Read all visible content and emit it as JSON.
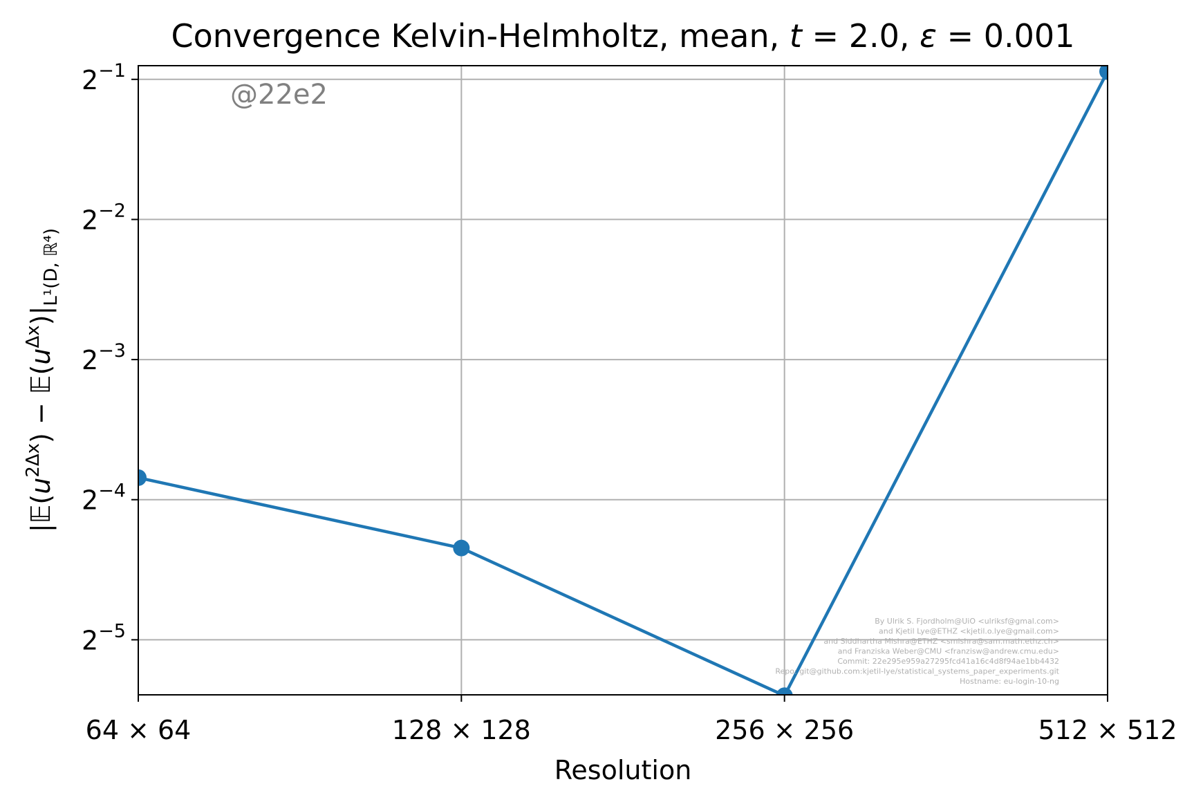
{
  "chart_data": {
    "type": "line",
    "title": "Convergence Kelvin-Helmholtz, mean, t = 2.0, ε = 0.001",
    "xlabel": "Resolution",
    "ylabel": "|𝔼(u^2Δx) − 𝔼(u^Δx)|L¹(D, ℝ⁴)",
    "x_scale": "log2",
    "y_scale": "log2",
    "categories": [
      "64 × 64",
      "128 × 128",
      "256 × 256",
      "512 × 512"
    ],
    "x": [
      64,
      128,
      256,
      512
    ],
    "series": [
      {
        "values": [
          0.0697,
          0.0492,
          0.0237,
          0.52
        ],
        "color": "#1f77b4",
        "marker": "circle"
      }
    ],
    "ylim": [
      0.0238,
      0.535
    ],
    "yticks": [
      {
        "value": 0.5,
        "base": "2",
        "exp": "−1"
      },
      {
        "value": 0.25,
        "base": "2",
        "exp": "−2"
      },
      {
        "value": 0.125,
        "base": "2",
        "exp": "−3"
      },
      {
        "value": 0.0625,
        "base": "2",
        "exp": "−4"
      },
      {
        "value": 0.03125,
        "base": "2",
        "exp": "−5"
      }
    ],
    "grid": true,
    "watermark": "@22e2",
    "credits": [
      "By Ulrik S. Fjordholm@UiO <ulriksf@gmal.com>",
      "and Kjetil Lye@ETHZ <kjetil.o.lye@gmail.com>",
      "and Siddhartha Mishra@ETHZ <smishra@sam.math.ethz.ch>",
      "and Franziska Weber@CMU <franzisw@andrew.cmu.edu>",
      "Commit: 22e295e959a27295fcd41a16c4d8f94ae1bb4432",
      "Repo: git@github.com:kjetil-lye/statistical_systems_paper_experiments.git",
      "Hostname: eu-login-10-ng"
    ]
  }
}
